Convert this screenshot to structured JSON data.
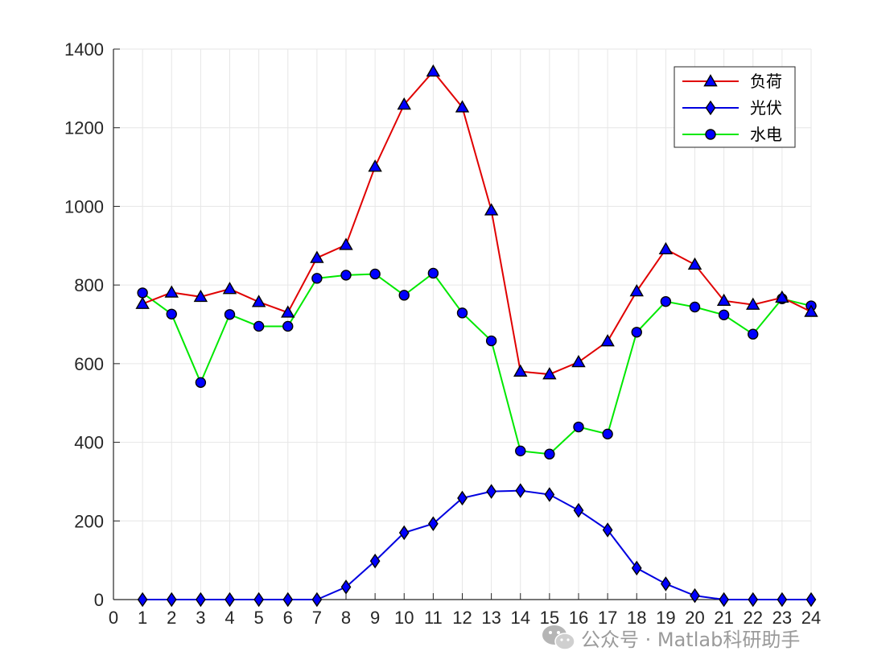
{
  "chart_data": {
    "type": "line",
    "x": [
      1,
      2,
      3,
      4,
      5,
      6,
      7,
      8,
      9,
      10,
      11,
      12,
      13,
      14,
      15,
      16,
      17,
      18,
      19,
      20,
      21,
      22,
      23,
      24
    ],
    "xlim": [
      0,
      24
    ],
    "ylim": [
      0,
      1400
    ],
    "xticks": [
      "0",
      "1",
      "2",
      "3",
      "4",
      "5",
      "6",
      "7",
      "8",
      "9",
      "10",
      "11",
      "12",
      "13",
      "14",
      "15",
      "16",
      "17",
      "18",
      "19",
      "20",
      "21",
      "22",
      "23",
      "24"
    ],
    "yticks": [
      "0",
      "200",
      "400",
      "600",
      "800",
      "1000",
      "1200",
      "1400"
    ],
    "grid": true,
    "legend_position": "top-right",
    "series": [
      {
        "name": "负荷",
        "color": "#e00000",
        "marker": "triangle",
        "values": [
          752,
          781,
          770,
          790,
          757,
          730,
          869,
          902,
          1101,
          1259,
          1343,
          1252,
          990,
          580,
          573,
          604,
          657,
          784,
          891,
          852,
          760,
          750,
          768,
          732
        ]
      },
      {
        "name": "光伏",
        "color": "#0000e0",
        "marker": "diamond",
        "values": [
          0,
          0,
          0,
          0,
          0,
          0,
          0,
          32,
          98,
          170,
          193,
          258,
          275,
          277,
          267,
          227,
          177,
          80,
          40,
          10,
          0,
          0,
          0,
          0
        ]
      },
      {
        "name": "水电",
        "color": "#00e800",
        "marker": "circle",
        "values": [
          780,
          726,
          552,
          725,
          695,
          695,
          817,
          825,
          828,
          774,
          830,
          729,
          658,
          378,
          370,
          439,
          421,
          680,
          758,
          744,
          724,
          675,
          765,
          747
        ]
      }
    ]
  },
  "watermark": {
    "text": "公众号 · Matlab科研助手",
    "icon": "wechat-icon"
  }
}
